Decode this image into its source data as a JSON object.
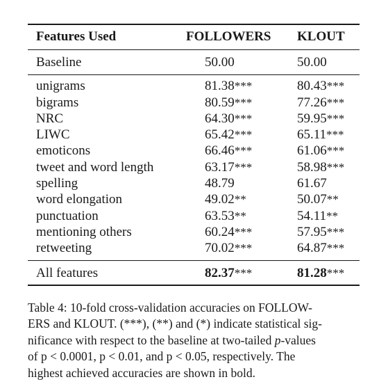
{
  "table": {
    "headers": [
      "Features Used",
      "FOLLOWERS",
      "KLOUT"
    ],
    "baseline": {
      "feature": "Baseline",
      "followers": "50.00",
      "klout": "50.00"
    },
    "rows": [
      {
        "feature": "unigrams",
        "followers": "81.38",
        "followers_sig": "***",
        "klout": "80.43",
        "klout_sig": "***"
      },
      {
        "feature": "bigrams",
        "followers": "80.59",
        "followers_sig": "***",
        "klout": "77.26",
        "klout_sig": "***"
      },
      {
        "feature": "NRC",
        "followers": "64.30",
        "followers_sig": "***",
        "klout": "59.95",
        "klout_sig": "***"
      },
      {
        "feature": "LIWC",
        "followers": "65.42",
        "followers_sig": "***",
        "klout": "65.11",
        "klout_sig": "***"
      },
      {
        "feature": "emoticons",
        "followers": "66.46",
        "followers_sig": "***",
        "klout": "61.06",
        "klout_sig": "***"
      },
      {
        "feature": "tweet and word length",
        "followers": "63.17",
        "followers_sig": "***",
        "klout": "58.98",
        "klout_sig": "***"
      },
      {
        "feature": "spelling",
        "followers": "48.79",
        "followers_sig": "",
        "klout": "61.67",
        "klout_sig": ""
      },
      {
        "feature": "word elongation",
        "followers": "49.02",
        "followers_sig": "**",
        "klout": "50.07",
        "klout_sig": "**"
      },
      {
        "feature": "punctuation",
        "followers": "63.53",
        "followers_sig": "**",
        "klout": "54.11",
        "klout_sig": "**"
      },
      {
        "feature": "mentioning others",
        "followers": "60.24",
        "followers_sig": "***",
        "klout": "57.95",
        "klout_sig": "***"
      },
      {
        "feature": "retweeting",
        "followers": "70.02",
        "followers_sig": "***",
        "klout": "64.87",
        "klout_sig": "***"
      }
    ],
    "all": {
      "feature": "All features",
      "followers": "82.37",
      "followers_sig": "***",
      "klout": "81.28",
      "klout_sig": "***"
    }
  },
  "caption": {
    "l1": "Table 4: 10-fold cross-validation accuracies on FOLLOW-",
    "l2": "ERS and KLOUT. (***), (**) and (*) indicate statistical sig-",
    "l3a": "nificance with respect to the baseline at two-tailed ",
    "l3b": "p",
    "l3c": "-values",
    "l4": "of p < 0.0001, p < 0.01, and p < 0.05, respectively. The",
    "l5": "highest achieved accuracies are shown in bold."
  }
}
